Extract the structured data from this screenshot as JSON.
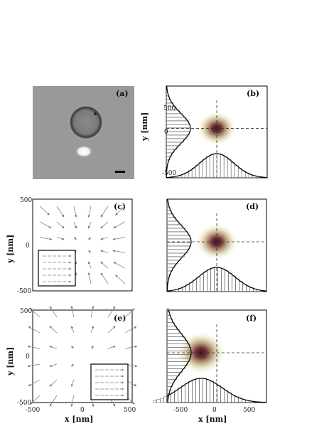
{
  "figure": {
    "panels": {
      "a": {
        "label": "(a)"
      },
      "b": {
        "label": "(b)"
      },
      "c": {
        "label": "(c)"
      },
      "d": {
        "label": "(d)"
      },
      "e": {
        "label": "(e)"
      },
      "f": {
        "label": "(f)"
      }
    },
    "left_ticks": [
      "500",
      "0",
      "-500"
    ],
    "bottom_left_ticks": [
      "-500",
      "0",
      "500"
    ],
    "right_ticks_b": [
      "500",
      "0",
      "-500"
    ],
    "bottom_right_ticks": [
      "-500",
      "0",
      "500"
    ],
    "ylabel": "y [nm]",
    "xlabel": "x [nm]"
  },
  "chart_data": [
    {
      "panel": "b",
      "type": "scatter",
      "center": [
        0,
        0
      ],
      "spread": 120,
      "xlim": [
        -800,
        800
      ],
      "ylim": [
        -700,
        600
      ]
    },
    {
      "panel": "d",
      "type": "scatter",
      "center": [
        0,
        0
      ],
      "spread": 130,
      "xlim": [
        -800,
        800
      ],
      "ylim": [
        -700,
        600
      ]
    },
    {
      "panel": "f",
      "type": "scatter",
      "center": [
        -250,
        0
      ],
      "spread": 150,
      "xlim": [
        -800,
        800
      ],
      "ylim": [
        -700,
        600
      ]
    }
  ]
}
